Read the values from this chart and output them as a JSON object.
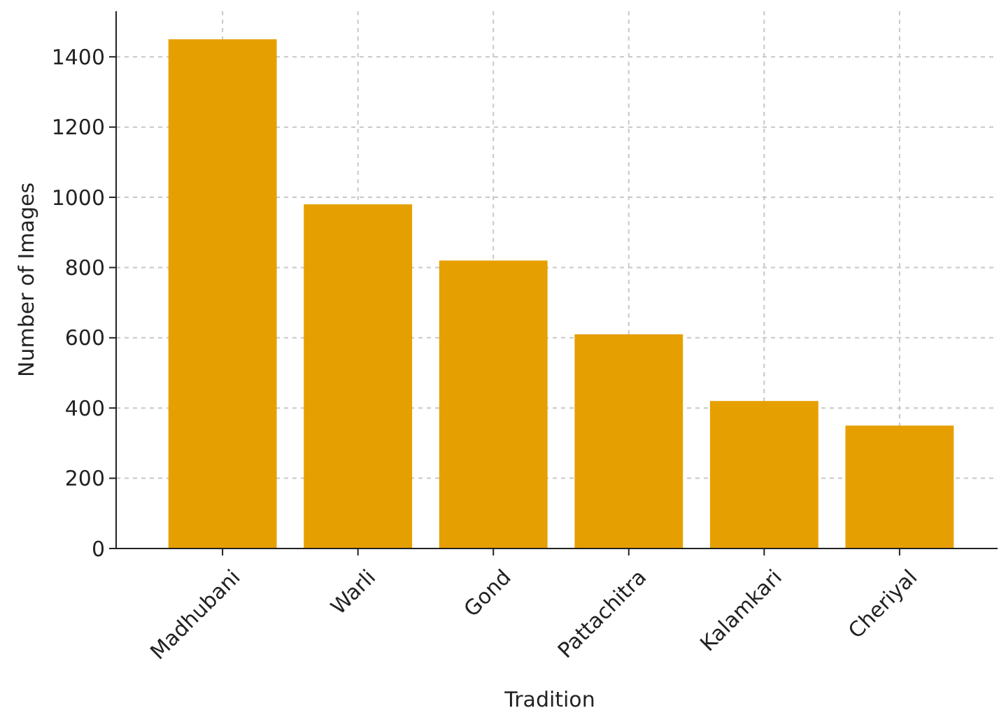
{
  "chart_data": {
    "type": "bar",
    "xlabel": "Tradition",
    "ylabel": "Number of Images",
    "categories": [
      "Madhubani",
      "Warli",
      "Gond",
      "Pattachitra",
      "Kalamkari",
      "Cheriyal"
    ],
    "values": [
      1450,
      980,
      820,
      610,
      420,
      350
    ],
    "color": "#e69f00",
    "ylim": [
      0,
      1530
    ],
    "yticks": [
      0,
      200,
      400,
      600,
      800,
      1000,
      1200,
      1400
    ],
    "grid": true
  }
}
